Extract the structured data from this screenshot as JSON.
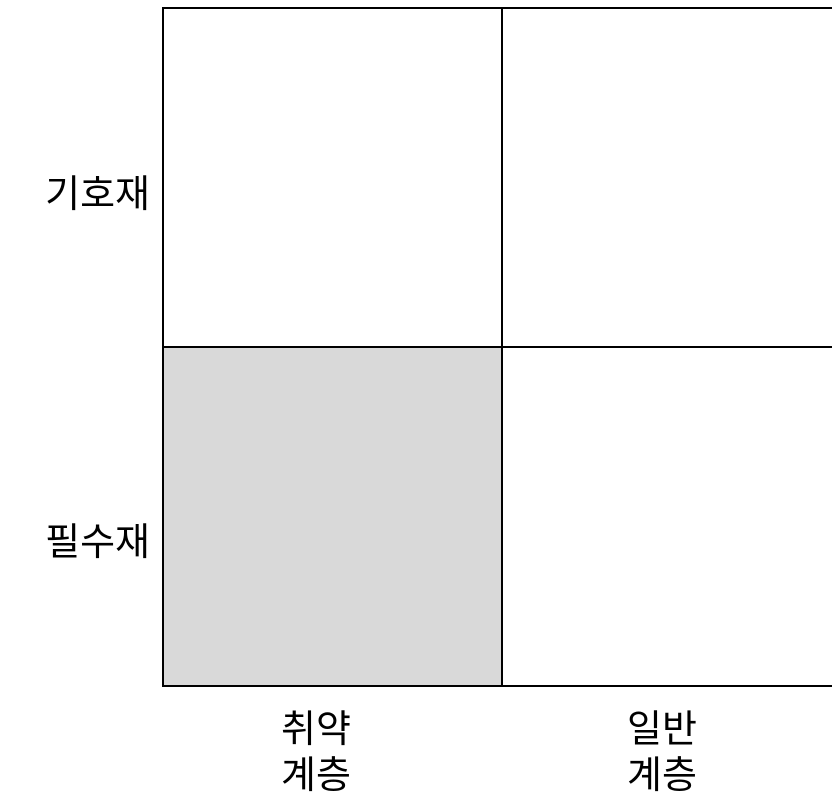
{
  "rows": [
    {
      "label": "기호재"
    },
    {
      "label": "필수재"
    }
  ],
  "columns": [
    {
      "line1": "취약",
      "line2": "계층"
    },
    {
      "line1": "일반",
      "line2": "계층"
    }
  ],
  "cells": {
    "top_left": {
      "fill": "#ffffff"
    },
    "top_right": {
      "fill": "#ffffff"
    },
    "bottom_left": {
      "fill": "#d9d9d9",
      "highlighted": true
    },
    "bottom_right": {
      "fill": "#ffffff"
    }
  }
}
